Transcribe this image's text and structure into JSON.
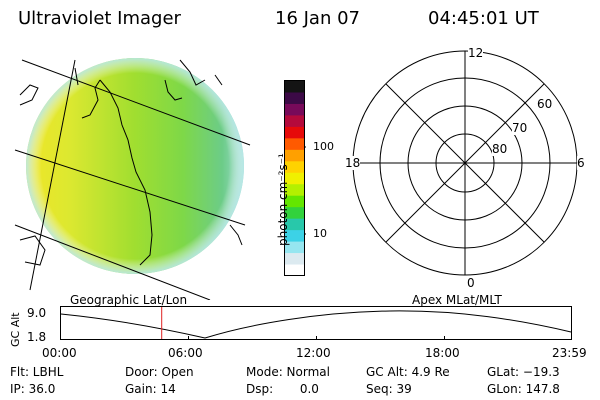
{
  "header": {
    "instrument": "Ultraviolet Imager",
    "date": "16 Jan 07",
    "time": "04:45:01 UT"
  },
  "colorbar": {
    "unit_label": "photon cm⁻²s⁻¹",
    "ticks": [
      "100",
      "10"
    ],
    "colors": [
      "#141414",
      "#3c0a46",
      "#780a5a",
      "#b40a3c",
      "#e60a0a",
      "#ff5a00",
      "#ffa000",
      "#ffd200",
      "#f0f000",
      "#b4f000",
      "#64e600",
      "#32d23c",
      "#28c8aa",
      "#3cd2e6",
      "#96e6f0",
      "#dceaf0",
      "#ffffff"
    ]
  },
  "polar": {
    "mlt_labels": {
      "top": "12",
      "left": "18",
      "right": "6",
      "bottom": "0"
    },
    "lat_labels": [
      "60",
      "70",
      "80"
    ]
  },
  "projections": {
    "left": "Geographic Lat/Lon",
    "right": "Apex MLat/MLT"
  },
  "altitude_plot": {
    "ylabel": "GC Alt",
    "yticks": [
      "9.0",
      "1.8"
    ],
    "xticks": [
      "00:00",
      "06:00",
      "12:00",
      "18:00",
      "23:59"
    ],
    "marker_time": "04:45",
    "marker_color": "#e02020"
  },
  "status": {
    "filter": "Flt: LBHL",
    "ip": "IP: 36.0",
    "door": "Door: Open",
    "gain": "Gain: 14",
    "mode": "Mode: Normal",
    "dsp": "Dsp:       0.0",
    "gc_alt": "GC Alt: 4.9 Re",
    "seq": "Seq: 39",
    "glat": "GLat: −19.3",
    "glon": "GLon: 147.8"
  }
}
